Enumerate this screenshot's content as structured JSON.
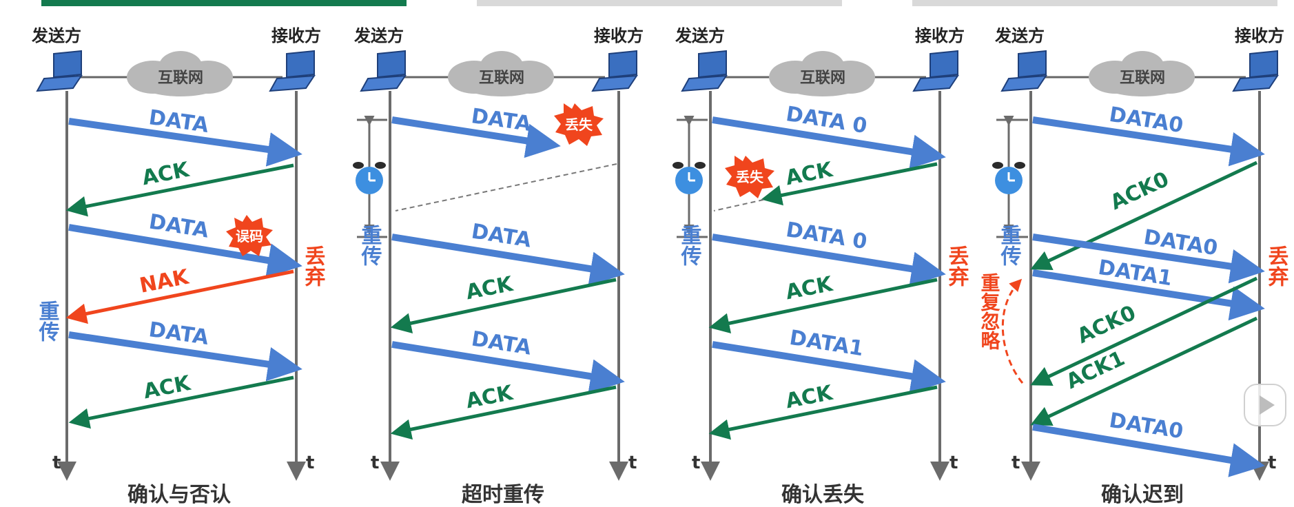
{
  "colors": {
    "data_arrow": "#4a7fd1",
    "ack_arrow": "#137a4e",
    "nak_arrow": "#f0451d",
    "alert": "#f0451d",
    "timeline": "#6b6b6b",
    "cloud": "#b8b8b8",
    "tab_active": "#137a4e",
    "tab_inactive": "#d9d9d9",
    "clock": "#3d8fe0"
  },
  "common": {
    "sender": "发送方",
    "receiver": "接收方",
    "network": "互联网",
    "time": "t"
  },
  "panels": [
    {
      "id": "confirm-and-deny",
      "caption": "确认与否认",
      "messages": [
        {
          "label": "DATA",
          "kind": "data"
        },
        {
          "label": "ACK",
          "kind": "ack"
        },
        {
          "label": "DATA",
          "kind": "data",
          "tag": "误码"
        },
        {
          "label": "NAK",
          "kind": "nak"
        },
        {
          "label": "DATA",
          "kind": "data"
        },
        {
          "label": "ACK",
          "kind": "ack"
        }
      ],
      "notes": {
        "discard": "丢弃",
        "retransmit": "重传"
      }
    },
    {
      "id": "timeout-retransmit",
      "caption": "超时重传",
      "messages": [
        {
          "label": "DATA",
          "kind": "data",
          "tag": "丢失"
        },
        {
          "label": "DATA",
          "kind": "data"
        },
        {
          "label": "ACK",
          "kind": "ack"
        },
        {
          "label": "DATA",
          "kind": "data"
        },
        {
          "label": "ACK",
          "kind": "ack"
        }
      ],
      "notes": {
        "retransmit": "重传"
      }
    },
    {
      "id": "ack-lost",
      "caption": "确认丢失",
      "messages": [
        {
          "label": "DATA 0",
          "kind": "data"
        },
        {
          "label": "ACK",
          "kind": "ack",
          "tag": "丢失"
        },
        {
          "label": "DATA 0",
          "kind": "data"
        },
        {
          "label": "ACK",
          "kind": "ack"
        },
        {
          "label": "DATA1",
          "kind": "data"
        },
        {
          "label": "ACK",
          "kind": "ack"
        }
      ],
      "notes": {
        "discard": "丢弃",
        "retransmit": "重传"
      }
    },
    {
      "id": "ack-delayed",
      "caption": "确认迟到",
      "messages": [
        {
          "label": "DATA0",
          "kind": "data"
        },
        {
          "label": "ACK0",
          "kind": "ack"
        },
        {
          "label": "DATA0",
          "kind": "data"
        },
        {
          "label": "DATA1",
          "kind": "data"
        },
        {
          "label": "ACK0",
          "kind": "ack"
        },
        {
          "label": "ACK1",
          "kind": "ack"
        },
        {
          "label": "DATA0",
          "kind": "data"
        }
      ],
      "notes": {
        "discard": "丢弃",
        "retransmit": "重传",
        "ignore": "重复忽略"
      }
    }
  ]
}
